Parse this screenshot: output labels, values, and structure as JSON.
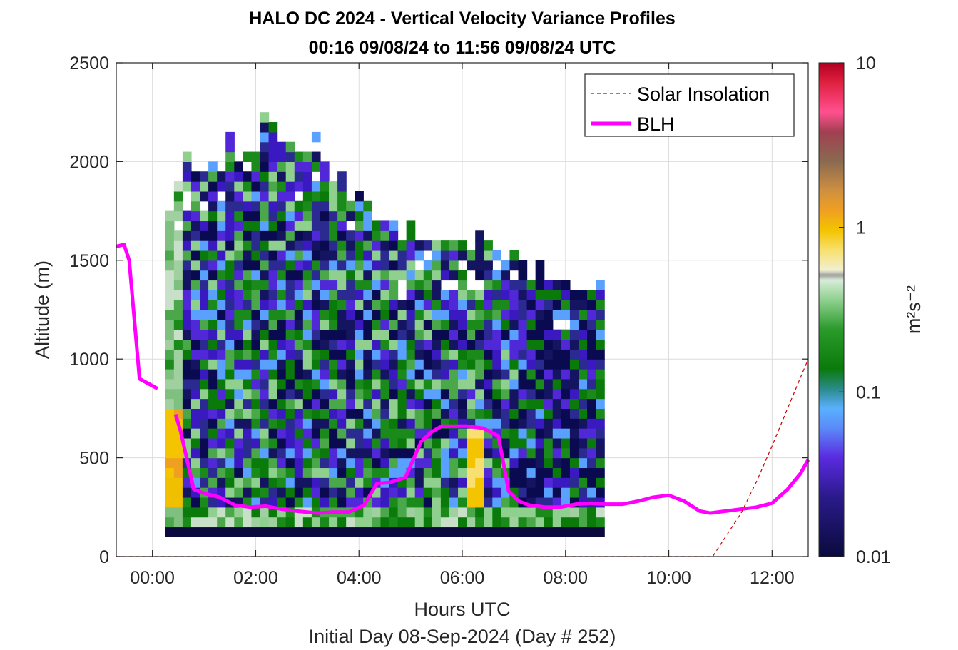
{
  "chart_data": {
    "type": "heatmap",
    "title_line1": "HALO DC 2024 - Vertical Velocity Variance Profiles",
    "title_line2": "00:16 09/08/24 to 11:56 09/08/24  UTC",
    "xlabel": "Hours UTC",
    "xlabel2": "Initial Day 08-Sep-2024 (Day # 252)",
    "ylabel": "Altitude (m)",
    "xlim": [
      -0.7,
      12.7
    ],
    "ylim": [
      0,
      2500
    ],
    "x_ticks": [
      0,
      2,
      4,
      6,
      8,
      10,
      12
    ],
    "x_tick_labels": [
      "00:00",
      "02:00",
      "04:00",
      "06:00",
      "08:00",
      "10:00",
      "12:00"
    ],
    "y_ticks": [
      0,
      500,
      1000,
      1500,
      2000,
      2500
    ],
    "y_tick_labels": [
      "0",
      "500",
      "1000",
      "1500",
      "2000",
      "2500"
    ],
    "grid": true,
    "colorbar": {
      "label": "m²s⁻²",
      "scale": "log",
      "range": [
        0.01,
        10
      ],
      "ticks": [
        0.01,
        0.1,
        1,
        10
      ],
      "tick_labels": [
        "0.01",
        "0.1",
        "1",
        "10"
      ]
    },
    "legend": {
      "placement": "top-right",
      "entries": [
        {
          "label": "Solar Insolation",
          "style": "dashed",
          "color": "#cc0000"
        },
        {
          "label": "BLH",
          "style": "solid",
          "color": "#ff00ff"
        }
      ]
    },
    "heatmap": {
      "x_start": 0.25,
      "x_step": 0.1667,
      "ncols": 51,
      "y_start": 100,
      "y_step": 50,
      "top_altitudes": [
        1750,
        1900,
        2050,
        2000,
        1950,
        2050,
        1950,
        2150,
        2000,
        2050,
        2050,
        2250,
        2200,
        2150,
        2100,
        2050,
        2050,
        2150,
        2000,
        1900,
        1950,
        1800,
        1850,
        1800,
        1700,
        1700,
        1700,
        1600,
        1700,
        1650,
        1600,
        1650,
        1600,
        1600,
        1600,
        1550,
        1650,
        1600,
        1550,
        1500,
        1550,
        1500,
        1450,
        1500,
        1400,
        1400,
        1400,
        1350,
        1350,
        1350,
        1400
      ],
      "seed": 252,
      "dominant_color_by_period": [
        {
          "x_range": [
            0.25,
            0.5
          ],
          "low_altitude": "#f4c400",
          "high_altitude": "#7fbf7f"
        },
        {
          "x_range": [
            0.5,
            4.0
          ],
          "mix": [
            "#0a0a50",
            "#3a1ac0",
            "#1a8a1a",
            "#5aa0ff",
            "#8fd08f"
          ]
        },
        {
          "x_range": [
            4.0,
            7.0
          ],
          "mix": [
            "#0a0a50",
            "#3a1ac0",
            "#1a8a1a",
            "#5aa0ff",
            "#8fd08f"
          ],
          "low_altitude": "#f4c400"
        },
        {
          "x_range": [
            7.0,
            12.0
          ],
          "mix": [
            "#0a0a50",
            "#3a1ac0",
            "#1a8a1a"
          ]
        }
      ],
      "bottom_row_color": "#0a0a3c"
    },
    "series": [
      {
        "name": "BLH",
        "color": "#ff00ff",
        "segments": [
          {
            "x": [
              -0.7,
              -0.55,
              -0.45,
              -0.25,
              0.1
            ],
            "y": [
              1570,
              1580,
              1500,
              900,
              850
            ]
          },
          {
            "x": [
              0.45,
              0.55,
              0.8,
              1.0,
              1.3,
              1.6,
              1.9,
              2.2,
              2.5,
              2.8,
              3.2,
              3.5,
              3.8,
              4.1,
              4.35,
              4.6,
              4.9,
              5.2,
              5.4,
              5.6,
              5.9,
              6.1,
              6.4,
              6.7,
              6.9,
              7.1,
              7.3,
              7.6,
              7.9,
              8.2,
              8.5,
              8.8,
              9.1,
              9.4,
              9.7,
              10.0,
              10.3,
              10.6,
              10.8,
              11.1,
              11.4,
              11.7,
              12.0,
              12.3,
              12.55,
              12.7
            ],
            "y": [
              720,
              630,
              340,
              320,
              300,
              260,
              250,
              255,
              240,
              230,
              220,
              225,
              225,
              260,
              370,
              375,
              400,
              580,
              630,
              660,
              660,
              660,
              650,
              610,
              330,
              280,
              260,
              250,
              250,
              265,
              270,
              265,
              265,
              280,
              300,
              310,
              280,
              230,
              220,
              230,
              240,
              250,
              270,
              340,
              420,
              490
            ]
          }
        ]
      },
      {
        "name": "Solar Insolation",
        "color": "#cc0000",
        "x": [
          -0.7,
          10.85,
          11.1,
          11.4,
          11.7,
          12.0,
          12.3,
          12.7
        ],
        "y": [
          0,
          0,
          100,
          220,
          380,
          560,
          750,
          1000
        ]
      }
    ]
  }
}
